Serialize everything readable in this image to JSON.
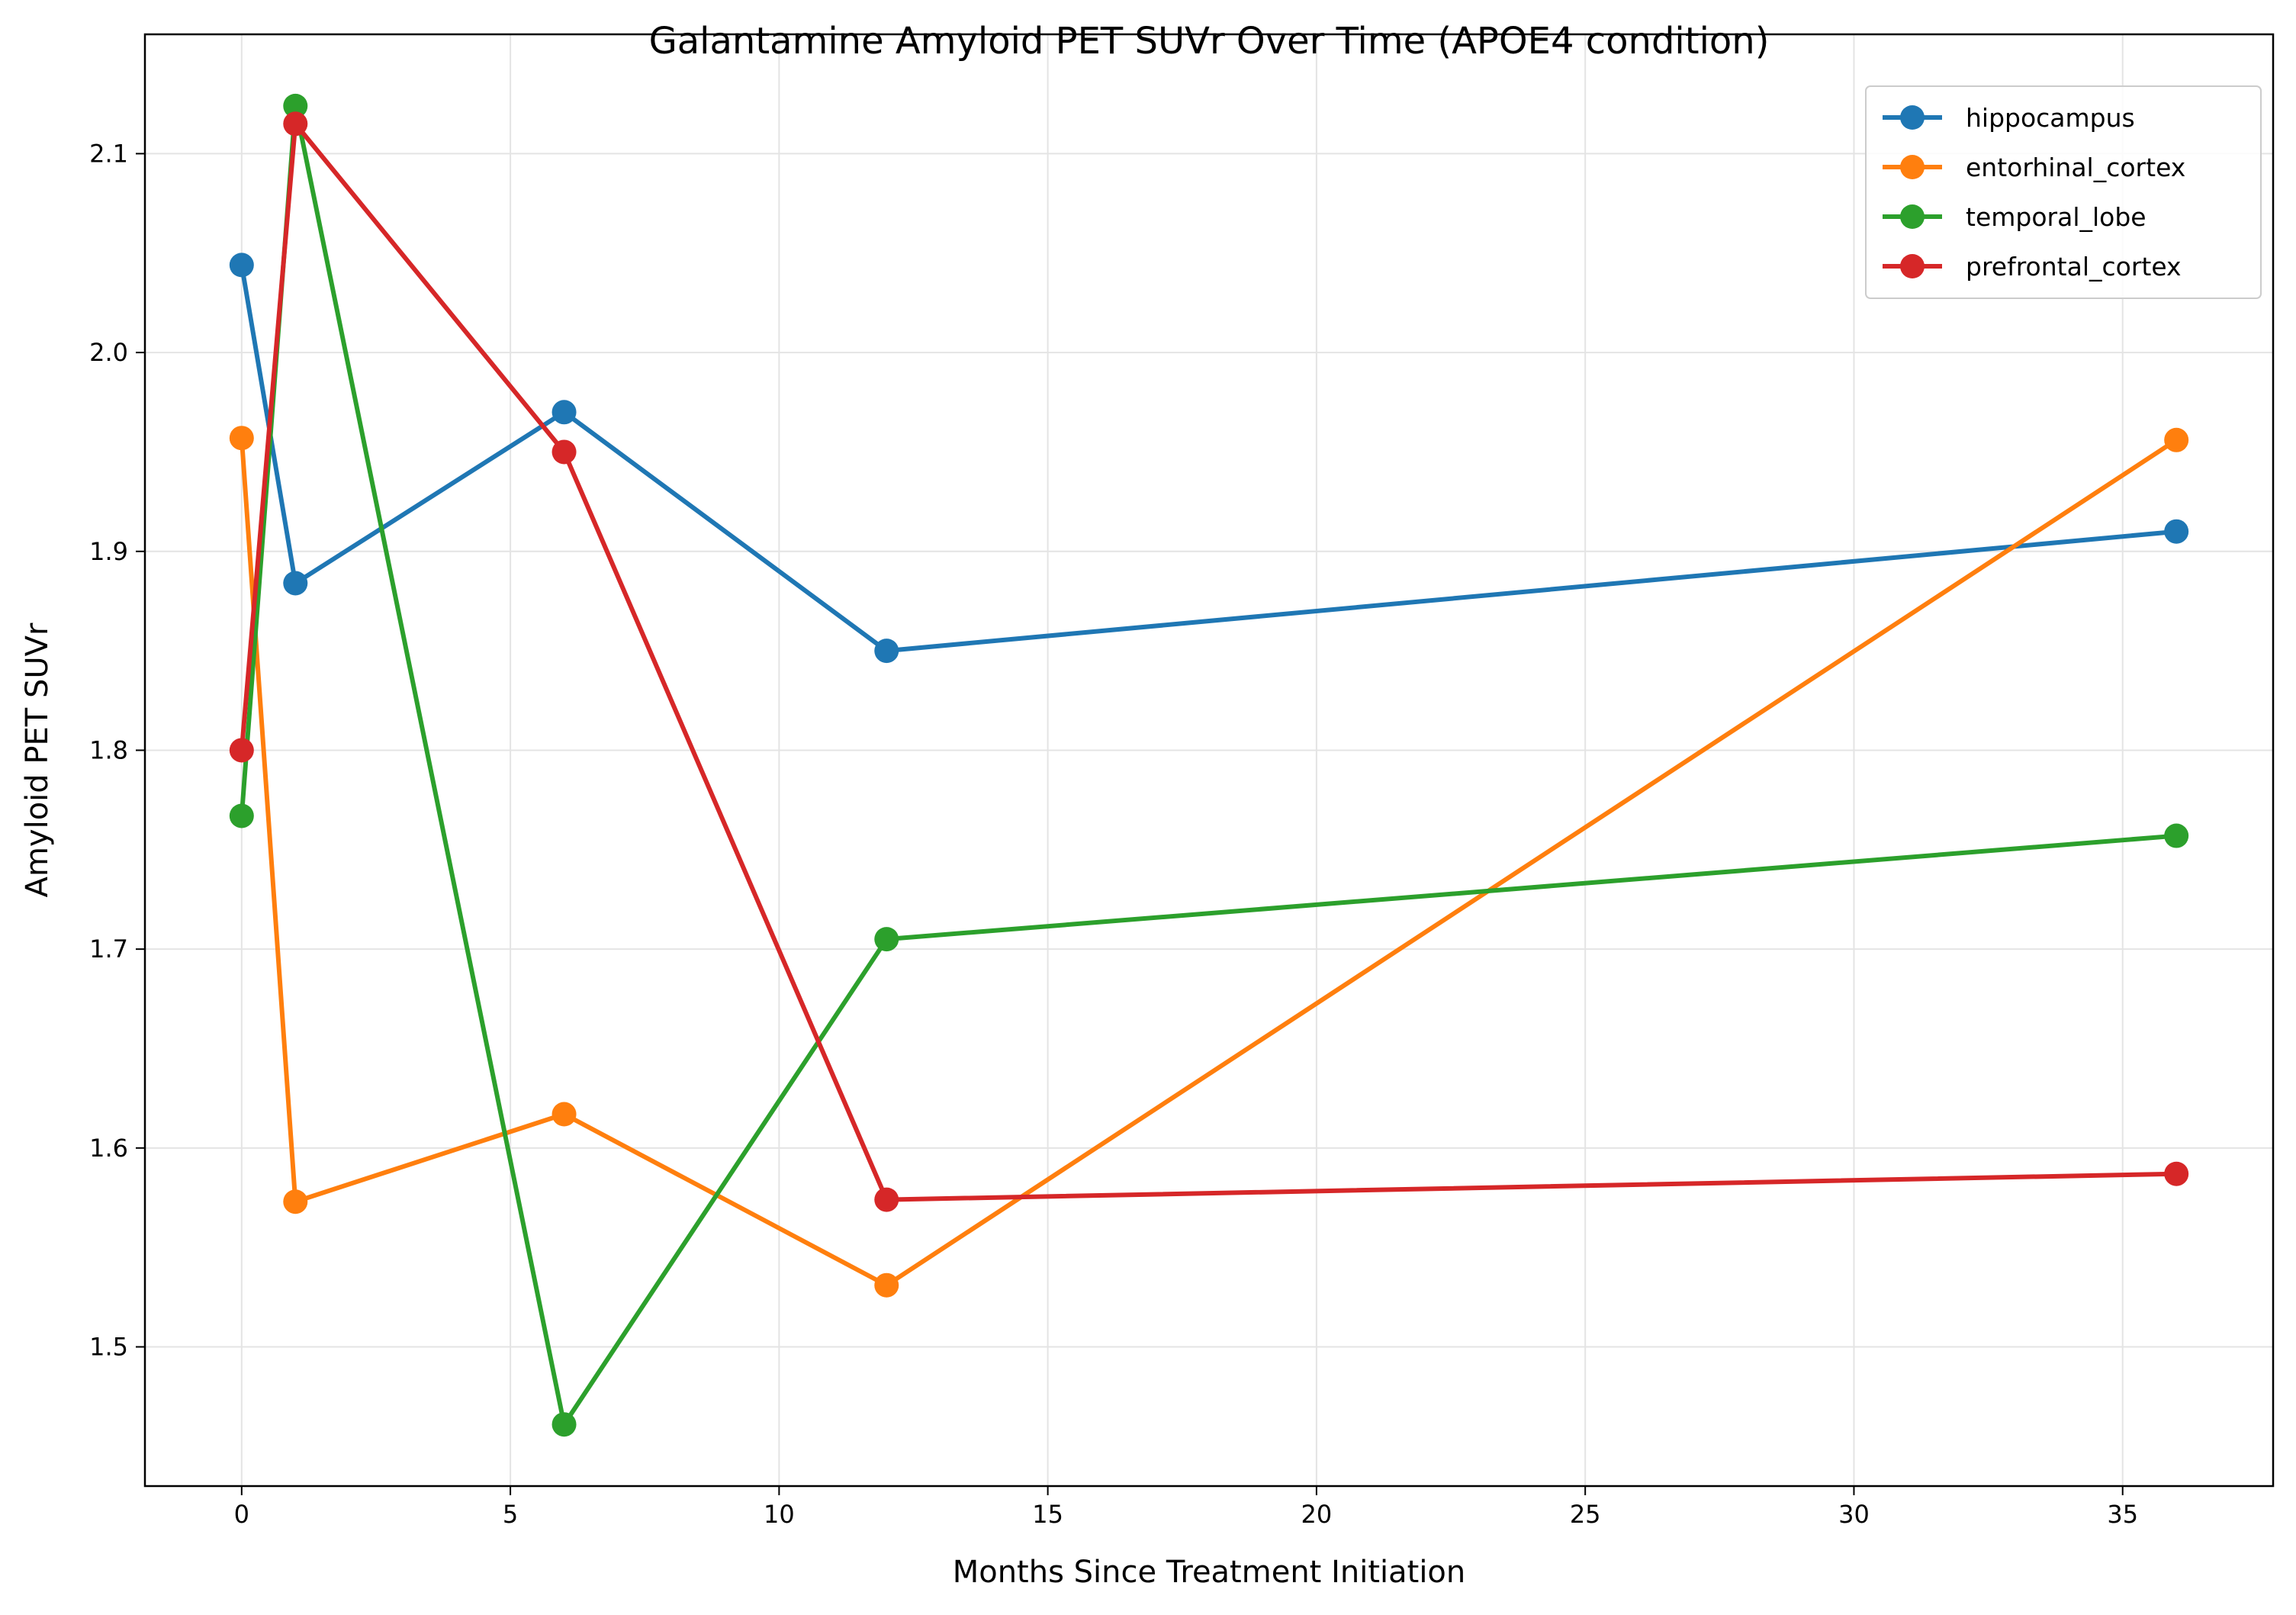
{
  "chart_data": {
    "type": "line",
    "title": "Galantamine Amyloid PET SUVr Over Time (APOE4 condition)",
    "xlabel": "Months Since Treatment Initiation",
    "ylabel": "Amyloid PET SUVr",
    "x": [
      0,
      1,
      6,
      12,
      36
    ],
    "xlim": [
      -1.8,
      37.8
    ],
    "ylim": [
      1.43,
      2.16
    ],
    "xticks": [
      0,
      5,
      10,
      15,
      20,
      25,
      30,
      35
    ],
    "yticks": [
      1.5,
      1.6,
      1.7,
      1.8,
      1.9,
      2.0,
      2.1
    ],
    "ytick_labels": [
      "1.5",
      "1.6",
      "1.7",
      "1.8",
      "1.9",
      "2.0",
      "2.1"
    ],
    "grid": true,
    "legend_position": "top-right",
    "series": [
      {
        "name": "hippocampus",
        "color": "#1f77b4",
        "values": [
          2.044,
          1.884,
          1.97,
          1.85,
          1.91
        ]
      },
      {
        "name": "entorhinal_cortex",
        "color": "#ff7f0e",
        "values": [
          1.957,
          1.573,
          1.617,
          1.531,
          1.956
        ]
      },
      {
        "name": "temporal_lobe",
        "color": "#2ca02c",
        "values": [
          1.767,
          2.124,
          1.461,
          1.705,
          1.757
        ]
      },
      {
        "name": "prefrontal_cortex",
        "color": "#d62728",
        "values": [
          1.8,
          2.115,
          1.95,
          1.574,
          1.587
        ]
      }
    ]
  }
}
